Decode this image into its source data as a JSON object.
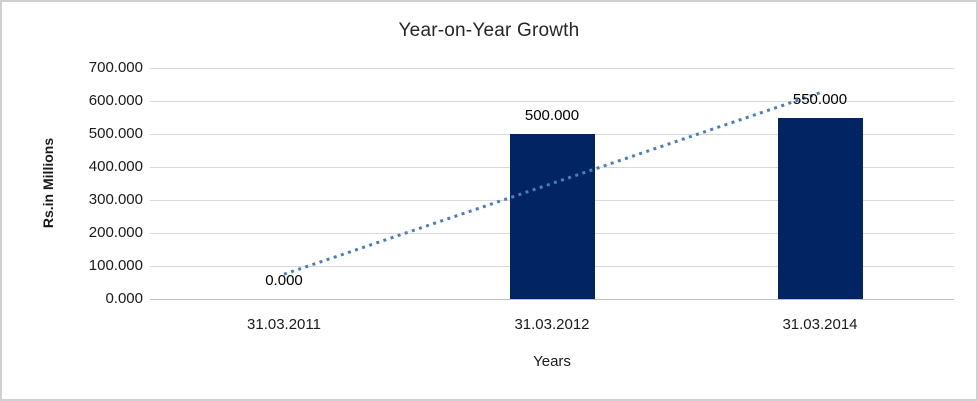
{
  "colors": {
    "background": "#ffffff",
    "border": "#d0d0d0",
    "bar": "#032463",
    "trendline": "#4a7ebb",
    "gridline": "#d9d9d9",
    "axis_line": "#bfbfbf",
    "text": "#1a1a1a"
  },
  "chart_data": {
    "type": "bar",
    "title": "Year-on-Year Growth",
    "xlabel": "Years",
    "ylabel": "Rs.in Millions",
    "categories": [
      "31.03.2011",
      "31.03.2012",
      "31.03.2014"
    ],
    "values": [
      0,
      500,
      550
    ],
    "data_labels": [
      "0.000",
      "500.000",
      "550.000"
    ],
    "y_ticks": [
      "700.000",
      "600.000",
      "500.000",
      "400.000",
      "300.000",
      "200.000",
      "100.000",
      "0.000"
    ],
    "y_tick_values": [
      700,
      600,
      500,
      400,
      300,
      200,
      100,
      0
    ],
    "ylim": [
      0,
      700
    ],
    "grid": true,
    "legend": "none",
    "trendline": {
      "type": "linear",
      "style": "dotted",
      "values_at_categories": [
        75,
        350,
        625
      ]
    }
  }
}
